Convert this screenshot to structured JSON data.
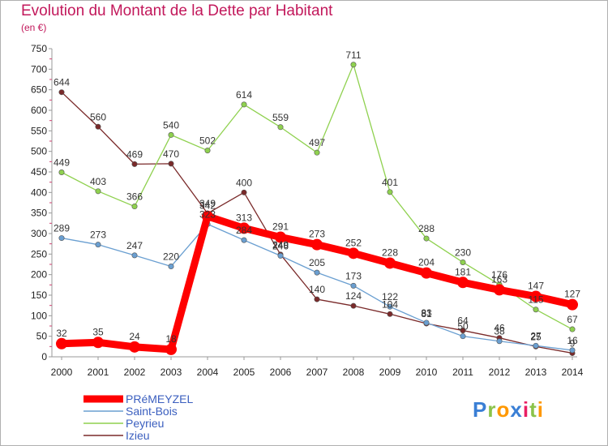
{
  "chart_data": {
    "type": "line",
    "title": "Evolution du Montant de la Dette par Habitant",
    "unit": "(en €)",
    "x": [
      "2000",
      "2001",
      "2002",
      "2003",
      "2004",
      "2005",
      "2006",
      "2007",
      "2008",
      "2009",
      "2010",
      "2011",
      "2012",
      "2013",
      "2014"
    ],
    "ylim": [
      0,
      750
    ],
    "yticks": [
      0,
      50,
      100,
      150,
      200,
      250,
      300,
      350,
      400,
      450,
      500,
      550,
      600,
      650,
      700,
      750
    ],
    "grid": false,
    "legend": "bottom-left",
    "series": [
      {
        "name": "PRéMEYZEL",
        "color": "#ff0000",
        "values": [
          32,
          35,
          24,
          18,
          342,
          313,
          291,
          273,
          252,
          228,
          204,
          181,
          163,
          147,
          127
        ]
      },
      {
        "name": "Saint-Bois",
        "color": "#6a9fd1",
        "values": [
          289,
          273,
          247,
          220,
          323,
          284,
          246,
          205,
          173,
          122,
          83,
          50,
          38,
          27,
          16
        ]
      },
      {
        "name": "Peyrieu",
        "color": "#8fd14f",
        "values": [
          449,
          403,
          366,
          540,
          502,
          614,
          559,
          497,
          711,
          401,
          288,
          230,
          176,
          115,
          67
        ]
      },
      {
        "name": "Izieu",
        "color": "#7a2a2a",
        "values": [
          644,
          560,
          469,
          470,
          349,
          400,
          249,
          140,
          124,
          104,
          81,
          64,
          46,
          25,
          9
        ]
      }
    ]
  },
  "logo": {
    "letters": [
      "P",
      "r",
      "o",
      "x",
      "i",
      "t",
      "i"
    ],
    "colors": [
      "#3a7fd5",
      "#8bc34a",
      "#ff9800",
      "#3a7fd5",
      "#e91e63",
      "#8bc34a",
      "#ff9800"
    ]
  }
}
